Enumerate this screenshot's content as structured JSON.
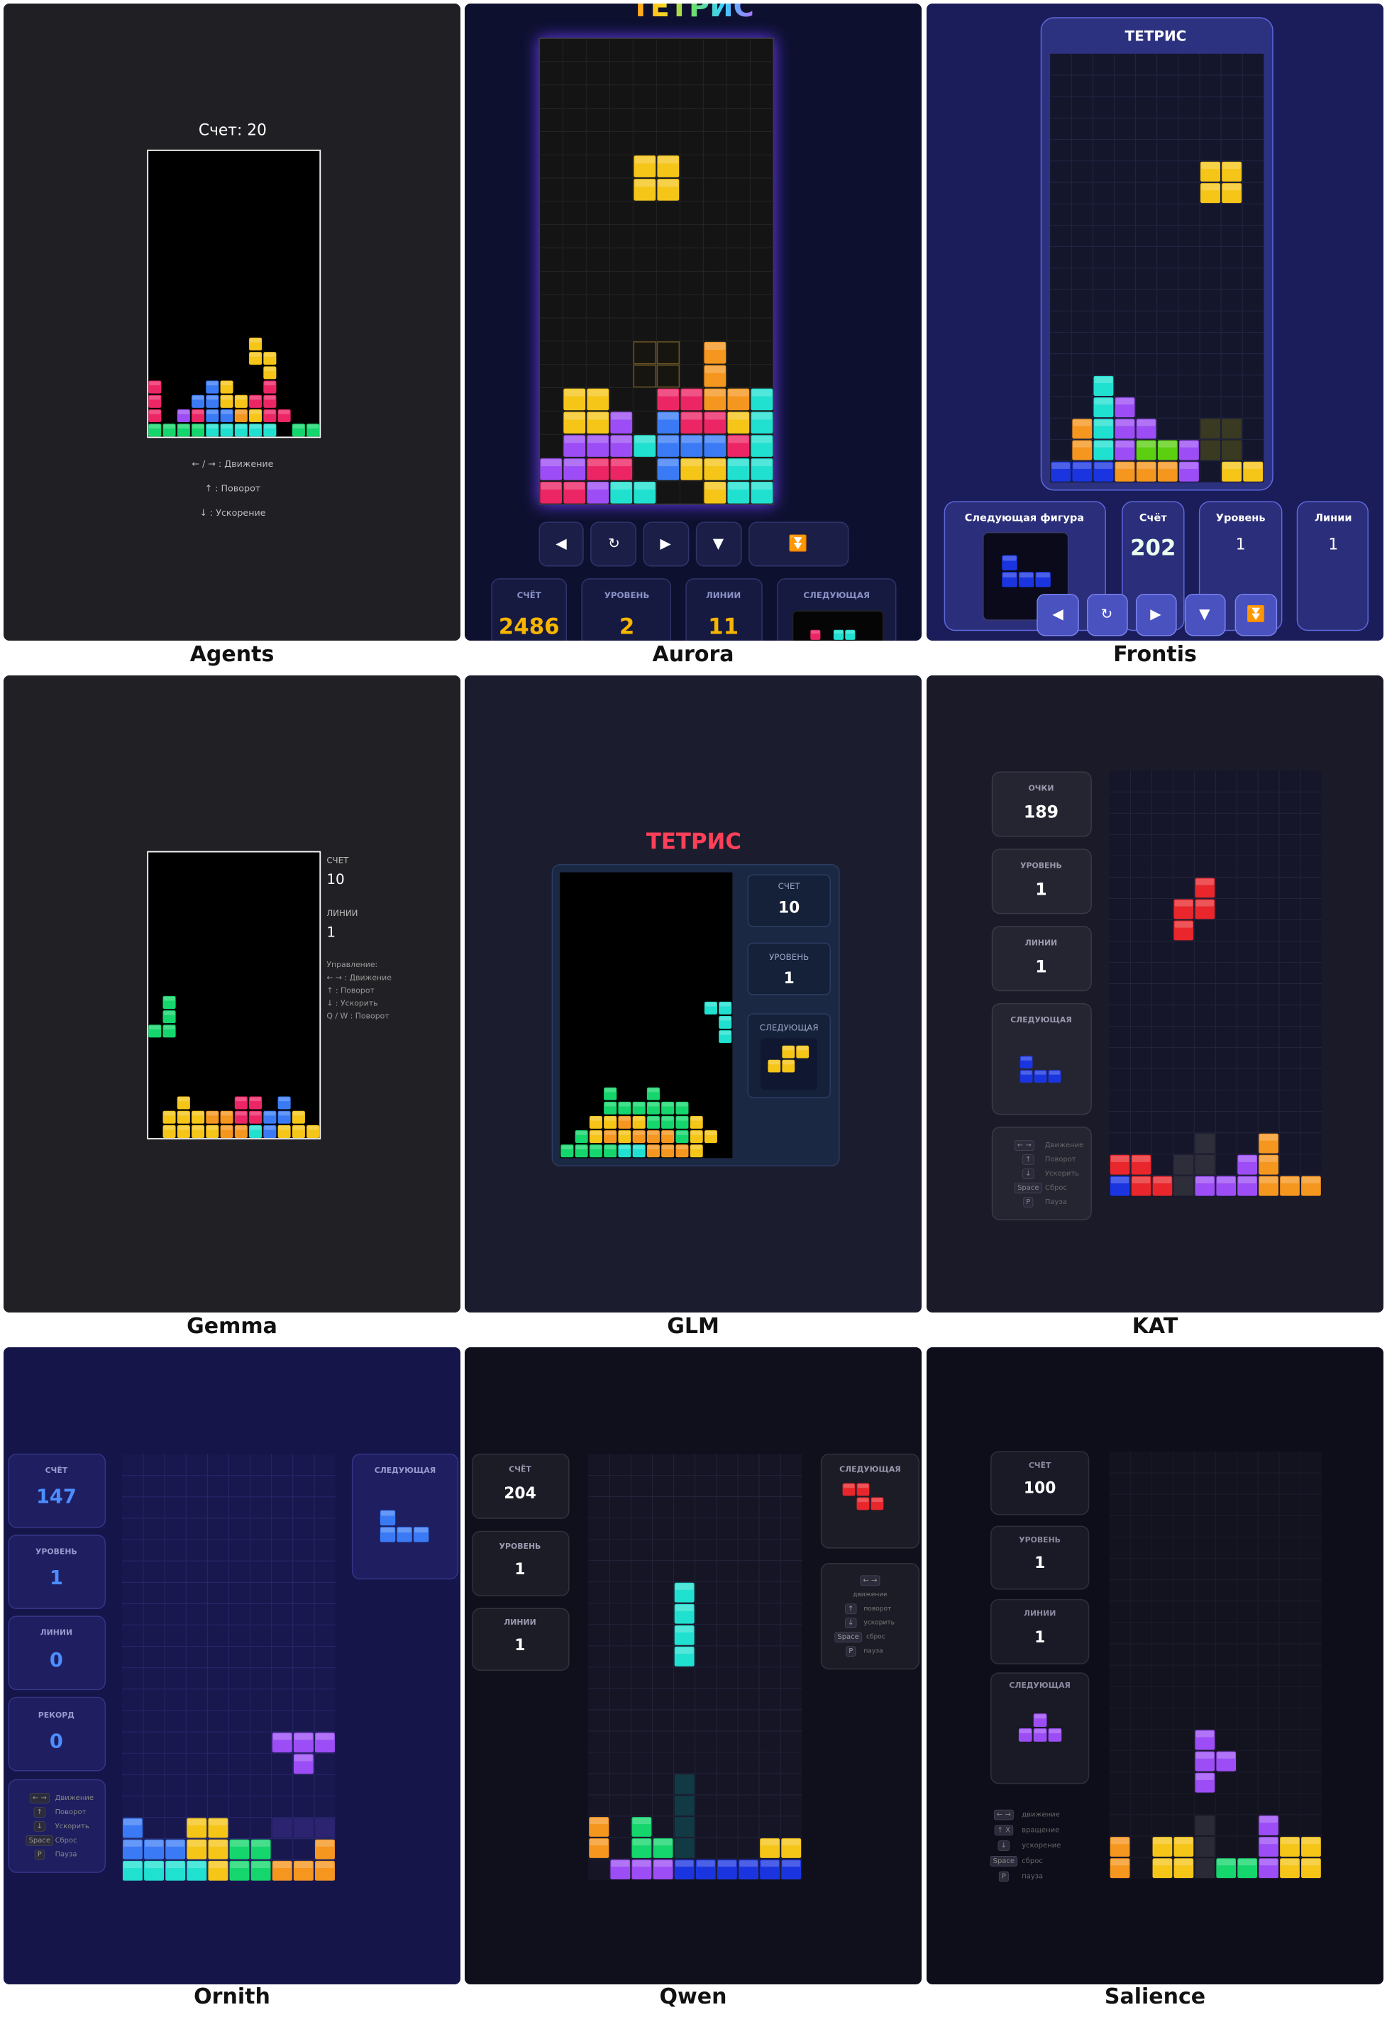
{
  "panels": [
    {
      "label": "Agents",
      "texts": [
        "Счет: 20",
        "← / → : Движение",
        "↑ : Поворот",
        "↓ : Ускорение"
      ]
    },
    {
      "label": "Aurora",
      "texts": [
        "ТЕТРИС",
        "◀",
        "↻",
        "▶",
        "▼",
        "⏬",
        "СЧЁТ",
        2486,
        "УРОВЕНЬ",
        2,
        "ЛИНИИ",
        11,
        "СЛЕДУЮЩАЯ"
      ]
    },
    {
      "label": "Frontis",
      "texts": [
        "ТЕТРИС",
        "Следующая фигура",
        "Счёт",
        202,
        "Уровень",
        1,
        "Линии",
        1,
        "◀",
        "↻",
        "▶",
        "▼",
        "⏬"
      ]
    },
    {
      "label": "Gemma",
      "texts": [
        "СЧЕТ",
        10,
        "ЛИНИИ",
        1,
        "Управление:",
        "← → : Движение",
        "↑ : Поворот",
        "↓ : Ускорить",
        "Q / W : Поворот"
      ]
    },
    {
      "label": "GLM",
      "texts": [
        "ТЕТРИС",
        "СЧЕТ",
        10,
        "УРОВЕНЬ",
        1,
        "СЛЕДУЮЩАЯ"
      ]
    },
    {
      "label": "KAT",
      "texts": [
        "ОЧКИ",
        189,
        "УРОВЕНЬ",
        1,
        "ЛИНИИ",
        1,
        "СЛЕДУЮЩАЯ",
        "← →",
        "Движение",
        "↑",
        "Поворот",
        "↓",
        "Ускорить",
        "Space",
        "Сброс",
        "P",
        "Пауза"
      ]
    },
    {
      "label": "Ornith",
      "texts": [
        "СЧЁТ",
        147,
        "УРОВЕНЬ",
        1,
        "ЛИНИИ",
        0,
        "РЕКОРД",
        0,
        "← →",
        "Движение",
        "↑",
        "Поворот",
        "↓",
        "Ускорить",
        "Space",
        "Сброс",
        "P",
        "Пауза",
        "СЛЕДУЮЩАЯ"
      ]
    },
    {
      "label": "Qwen",
      "texts": [
        "СЧЁТ",
        204,
        "УРОВЕНЬ",
        1,
        "ЛИНИИ",
        1,
        "СЛЕДУЮЩАЯ",
        "← →",
        "движение",
        "↑",
        "поворот",
        "↓",
        "ускорить",
        "Space",
        "сброс",
        "P",
        "пауза"
      ]
    },
    {
      "label": "Salience",
      "texts": [
        "СЧЁТ",
        100,
        "УРОВЕНЬ",
        1,
        "ЛИНИИ",
        1,
        "СЛЕДУЮЩАЯ",
        "← →",
        "движение",
        "↑ X",
        "вращение",
        "↓",
        "ускорение",
        "Space",
        "сброс",
        "P",
        "пауза"
      ]
    }
  ]
}
